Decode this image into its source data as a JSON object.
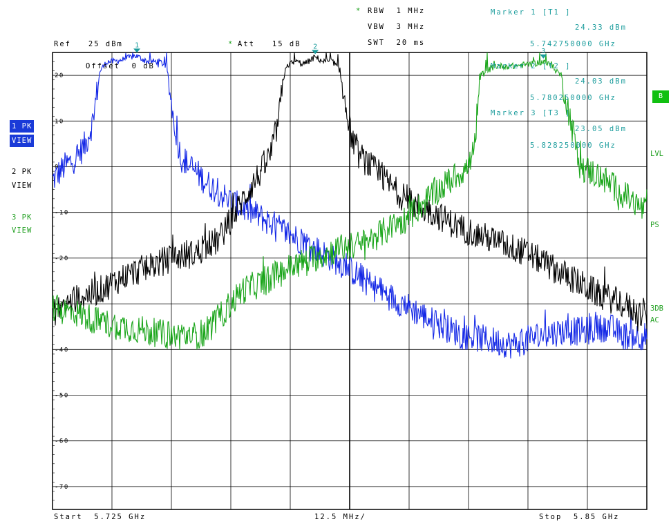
{
  "header": {
    "rbw_star": "*",
    "rbw": "RBW  1 MHz",
    "vbw": "VBW  3 MHz",
    "swt": "SWT  20 ms",
    "ref": "Ref   25 dBm",
    "att_star": "*",
    "att": "Att   15 dB",
    "offset": "Offset  0 dB"
  },
  "markers": {
    "m1_title": "Marker 1 [T1 ]",
    "m1_level": "24.33 dBm",
    "m1_freq": "5.742750000 GHz",
    "m2_title": "Marker 2 [T2 ]",
    "m2_level": "24.03 dBm",
    "m2_freq": "5.780250000 GHz",
    "m3_title": "Marker 3 [T3 ]",
    "m3_level": "23.05 dBm",
    "m3_freq": "5.828250000 GHz",
    "m1_label": "1",
    "m2_label": "2",
    "m3_label": "3"
  },
  "sidebar_left": {
    "t1_line1": "1 PK",
    "t1_line2": "VIEW",
    "t2_line1": "2 PK",
    "t2_line2": "VIEW",
    "t3_line1": "3 PK",
    "t3_line2": "VIEW"
  },
  "sidebar_right": {
    "b": "B",
    "lvl": "LVL",
    "ps": "PS",
    "db3": "3DB",
    "ac": "AC"
  },
  "footer": {
    "start": "Start  5.725 GHz",
    "span": "12.5 MHz/",
    "stop": "Stop  5.85 GHz"
  },
  "colors": {
    "trace1": "#1428e6",
    "trace2": "#000000",
    "trace3": "#1aa51a",
    "marker": "#1a9c9c",
    "grid": "#000000"
  },
  "chart_data": {
    "type": "line",
    "title": "",
    "xlabel": "",
    "ylabel": "",
    "x_unit": "GHz",
    "y_unit": "dBm",
    "xlim": [
      5.725,
      5.85
    ],
    "ylim": [
      -75,
      25
    ],
    "x_divisions": 10,
    "y_ticks": [
      20,
      10,
      0,
      -10,
      -20,
      -30,
      -40,
      -50,
      -60,
      -70
    ],
    "y_tick_labels": [
      "20",
      "10",
      "0",
      "-10",
      "-20",
      "-30",
      "-40",
      "-50",
      "-60",
      "-70"
    ],
    "grid": true,
    "series": [
      {
        "name": "1 PK VIEW",
        "x": [
          5.725,
          5.7275,
          5.73,
          5.732,
          5.7335,
          5.735,
          5.7365,
          5.738,
          5.74,
          5.7425,
          5.745,
          5.7475,
          5.749,
          5.7505,
          5.752,
          5.754,
          5.756,
          5.758,
          5.7605,
          5.763,
          5.767,
          5.772,
          5.777,
          5.782,
          5.787,
          5.792,
          5.797,
          5.802,
          5.807,
          5.812,
          5.817,
          5.822,
          5.827,
          5.832,
          5.837,
          5.842,
          5.845,
          5.85
        ],
        "y": [
          -3,
          0,
          2,
          5,
          10,
          21,
          23,
          23,
          23.5,
          24.3,
          23,
          23,
          22,
          10,
          2,
          0,
          -2,
          -4,
          -6,
          -8,
          -10,
          -13,
          -16,
          -19,
          -22,
          -26,
          -29,
          -32,
          -35,
          -37,
          -38,
          -39,
          -37,
          -36,
          -36,
          -35,
          -37,
          -37
        ]
      },
      {
        "name": "2 PK VIEW",
        "x": [
          5.725,
          5.73,
          5.735,
          5.74,
          5.745,
          5.75,
          5.755,
          5.76,
          5.7635,
          5.767,
          5.7695,
          5.771,
          5.7725,
          5.774,
          5.776,
          5.778,
          5.7803,
          5.782,
          5.784,
          5.7855,
          5.787,
          5.789,
          5.792,
          5.796,
          5.8,
          5.805,
          5.81,
          5.815,
          5.82,
          5.825,
          5.83,
          5.835,
          5.84,
          5.845,
          5.85
        ],
        "y": [
          -32,
          -29,
          -27,
          -24,
          -22,
          -20,
          -19,
          -16,
          -10,
          -4,
          0,
          3,
          10,
          22,
          23,
          22.5,
          24,
          23,
          23,
          21,
          10,
          3,
          0,
          -4,
          -8,
          -10,
          -13,
          -15,
          -17,
          -19,
          -22,
          -25,
          -28,
          -30,
          -33
        ]
      },
      {
        "name": "3 PK VIEW",
        "x": [
          5.725,
          5.73,
          5.735,
          5.74,
          5.745,
          5.75,
          5.755,
          5.7575,
          5.76,
          5.765,
          5.77,
          5.775,
          5.78,
          5.785,
          5.79,
          5.795,
          5.8,
          5.805,
          5.81,
          5.8125,
          5.814,
          5.815,
          5.818,
          5.822,
          5.826,
          5.8283,
          5.83,
          5.832,
          5.834,
          5.836,
          5.84,
          5.845,
          5.85
        ],
        "y": [
          -31,
          -32,
          -34,
          -35,
          -36,
          -37,
          -37,
          -36,
          -33,
          -27,
          -25,
          -22,
          -20,
          -18,
          -17,
          -14,
          -11,
          -6,
          -2,
          0,
          5,
          20,
          22,
          22,
          22.5,
          23,
          22,
          20,
          10,
          0,
          -2,
          -6,
          -10
        ]
      }
    ],
    "marker_points": [
      {
        "label": "1",
        "x": 5.74275,
        "y": 24.33
      },
      {
        "label": "2",
        "x": 5.78025,
        "y": 24.03
      },
      {
        "label": "3",
        "x": 5.82825,
        "y": 23.05
      }
    ]
  }
}
